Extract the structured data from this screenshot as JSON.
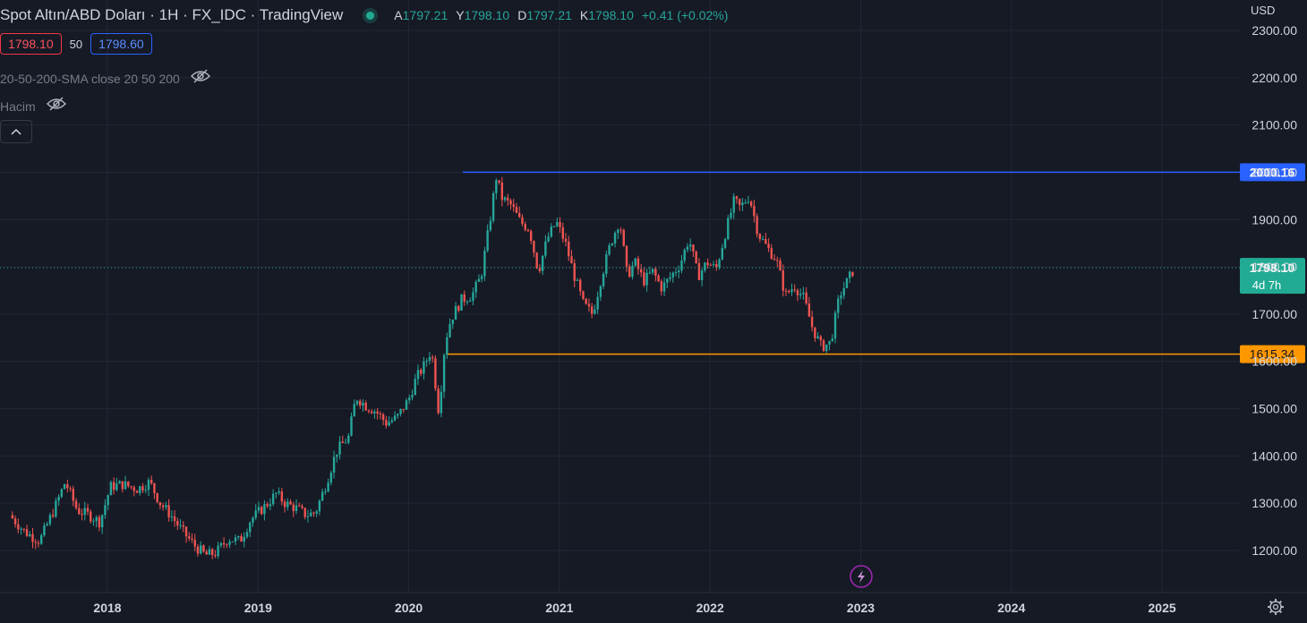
{
  "header": {
    "title": "Spot Altın/ABD Doları · 1H · FX_IDC · TradingView",
    "ohlc": [
      {
        "key": "A",
        "value": "1797.21"
      },
      {
        "key": "Y",
        "value": "1798.10"
      },
      {
        "key": "D",
        "value": "1797.21"
      },
      {
        "key": "K",
        "value": "1798.10"
      }
    ],
    "change": "+0.41 (+0.02%)"
  },
  "trade": {
    "sell": "1798.10",
    "spread": "50",
    "buy": "1798.60"
  },
  "indicators": [
    {
      "label": "20-50-200-SMA close 20 50 200"
    },
    {
      "label": "Hacim"
    }
  ],
  "axis": {
    "currency": "USD",
    "price_ticks": [
      "2300.00",
      "2200.00",
      "2100.00",
      "2000.00",
      "1900.00",
      "1800.00",
      "1700.00",
      "1600.00",
      "1500.00",
      "1400.00",
      "1300.00",
      "1200.00"
    ],
    "year_ticks": [
      "2018",
      "2019",
      "2020",
      "2021",
      "2022",
      "2023",
      "2024",
      "2025"
    ]
  },
  "lines": {
    "resistance": {
      "value": 2000.16,
      "label": "2000.16",
      "color": "#2962ff"
    },
    "support": {
      "value": 1615.34,
      "label": "1615.34",
      "color": "#ff9800"
    },
    "last_price": {
      "value": 1798.1,
      "label": "1798.10",
      "countdown": "4d 7h",
      "color": "#22ab94"
    }
  },
  "colors": {
    "up": "#26a69a",
    "down": "#ef5350",
    "background": "#161a25",
    "grid": "#232733"
  },
  "icons": [
    "eye-crossed-icon",
    "chevron-up-icon",
    "lightning-icon",
    "gear-icon"
  ],
  "chart_data": {
    "type": "candlestick",
    "title": "Spot Altın/ABD Doları · 1H · FX_IDC · TradingView",
    "ylabel": "USD",
    "ylim": [
      1140,
      2340
    ],
    "xlim": [
      2017.3,
      2025.8
    ],
    "x_ticks": [
      "2018",
      "2019",
      "2020",
      "2021",
      "2022",
      "2023",
      "2024",
      "2025"
    ],
    "grid": true,
    "close_series": [
      [
        2017.35,
        1275
      ],
      [
        2017.45,
        1240
      ],
      [
        2017.55,
        1220
      ],
      [
        2017.65,
        1290
      ],
      [
        2017.72,
        1345
      ],
      [
        2017.8,
        1285
      ],
      [
        2017.88,
        1275
      ],
      [
        2017.95,
        1260
      ],
      [
        2018.02,
        1335
      ],
      [
        2018.1,
        1340
      ],
      [
        2018.2,
        1330
      ],
      [
        2018.28,
        1345
      ],
      [
        2018.35,
        1300
      ],
      [
        2018.42,
        1275
      ],
      [
        2018.5,
        1240
      ],
      [
        2018.58,
        1210
      ],
      [
        2018.65,
        1190
      ],
      [
        2018.72,
        1195
      ],
      [
        2018.8,
        1225
      ],
      [
        2018.88,
        1220
      ],
      [
        2018.95,
        1265
      ],
      [
        2019.05,
        1295
      ],
      [
        2019.12,
        1320
      ],
      [
        2019.18,
        1300
      ],
      [
        2019.25,
        1290
      ],
      [
        2019.32,
        1275
      ],
      [
        2019.38,
        1280
      ],
      [
        2019.45,
        1340
      ],
      [
        2019.52,
        1410
      ],
      [
        2019.6,
        1440
      ],
      [
        2019.65,
        1525
      ],
      [
        2019.72,
        1505
      ],
      [
        2019.78,
        1495
      ],
      [
        2019.85,
        1470
      ],
      [
        2019.92,
        1480
      ],
      [
        2020.0,
        1520
      ],
      [
        2020.05,
        1565
      ],
      [
        2020.1,
        1590
      ],
      [
        2020.15,
        1625
      ],
      [
        2020.2,
        1490
      ],
      [
        2020.24,
        1640
      ],
      [
        2020.28,
        1690
      ],
      [
        2020.35,
        1730
      ],
      [
        2020.42,
        1740
      ],
      [
        2020.48,
        1780
      ],
      [
        2020.54,
        1900
      ],
      [
        2020.58,
        1990
      ],
      [
        2020.62,
        1945
      ],
      [
        2020.68,
        1930
      ],
      [
        2020.74,
        1895
      ],
      [
        2020.8,
        1880
      ],
      [
        2020.86,
        1790
      ],
      [
        2020.92,
        1860
      ],
      [
        2020.98,
        1895
      ],
      [
        2021.04,
        1850
      ],
      [
        2021.1,
        1780
      ],
      [
        2021.16,
        1720
      ],
      [
        2021.22,
        1700
      ],
      [
        2021.28,
        1780
      ],
      [
        2021.34,
        1850
      ],
      [
        2021.4,
        1900
      ],
      [
        2021.45,
        1780
      ],
      [
        2021.5,
        1810
      ],
      [
        2021.56,
        1770
      ],
      [
        2021.62,
        1790
      ],
      [
        2021.68,
        1755
      ],
      [
        2021.74,
        1780
      ],
      [
        2021.8,
        1805
      ],
      [
        2021.86,
        1860
      ],
      [
        2021.92,
        1780
      ],
      [
        2021.98,
        1810
      ],
      [
        2022.04,
        1795
      ],
      [
        2022.1,
        1870
      ],
      [
        2022.16,
        1940
      ],
      [
        2022.2,
        1925
      ],
      [
        2022.26,
        1950
      ],
      [
        2022.32,
        1870
      ],
      [
        2022.38,
        1840
      ],
      [
        2022.44,
        1815
      ],
      [
        2022.5,
        1740
      ],
      [
        2022.56,
        1760
      ],
      [
        2022.62,
        1735
      ],
      [
        2022.68,
        1670
      ],
      [
        2022.74,
        1630
      ],
      [
        2022.8,
        1640
      ],
      [
        2022.86,
        1740
      ],
      [
        2022.92,
        1775
      ],
      [
        2022.96,
        1798.1
      ]
    ]
  }
}
